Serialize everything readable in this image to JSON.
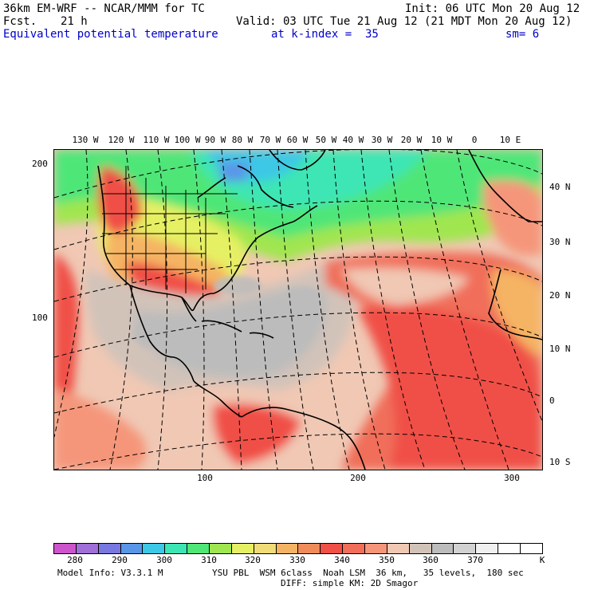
{
  "header": {
    "model_title": "36km EM-WRF -- NCAR/MMM for TC",
    "init": "Init: 06 UTC Mon 20 Aug 12",
    "fcst_label": "Fcst.",
    "fcst_value": "21 h",
    "valid": "Valid: 03 UTC Tue 21 Aug 12 (21 MDT Mon 20 Aug 12)",
    "field_name": "Equivalent potential temperature",
    "level": "at k-index =  35",
    "smoothing": "sm= 6"
  },
  "map": {
    "top_longitude_labels": [
      "130 W",
      "120 W",
      "110 W",
      "100 W",
      "90 W",
      "80 W",
      "70 W",
      "60 W",
      "50 W",
      "40 W",
      "30 W",
      "20 W",
      "10 W",
      "0",
      "10 E"
    ],
    "right_latitude_labels": [
      "40 N",
      "30 N",
      "20 N",
      "10 N",
      "0",
      "10 S"
    ],
    "left_grid_labels": [
      "200",
      "100"
    ],
    "bottom_grid_labels": [
      "100",
      "200",
      "300"
    ]
  },
  "colorbar": {
    "colors": [
      "#cc55cc",
      "#a070d8",
      "#7878e0",
      "#5a96e8",
      "#3cc8e6",
      "#3ce6b4",
      "#50e678",
      "#a0e650",
      "#e6f064",
      "#f0dc78",
      "#f5b464",
      "#f08c5a",
      "#f05046",
      "#f06e5a",
      "#f5967a",
      "#f0c8b4",
      "#d2c3b9",
      "#bcbcbc",
      "#d2d2d2",
      "#f0f0f0",
      "#ffffff",
      "#ffffff"
    ],
    "labels": [
      "280",
      "290",
      "300",
      "310",
      "320",
      "330",
      "340",
      "350",
      "360",
      "370"
    ],
    "units": "K"
  },
  "footer": {
    "model_info": "Model Info: V3.3.1 M",
    "physics": "YSU PBL  WSM 6class  Noah LSM  36 km,   35 levels,  180 sec",
    "diffusion": "DIFF: simple KM: 2D Smagor"
  }
}
